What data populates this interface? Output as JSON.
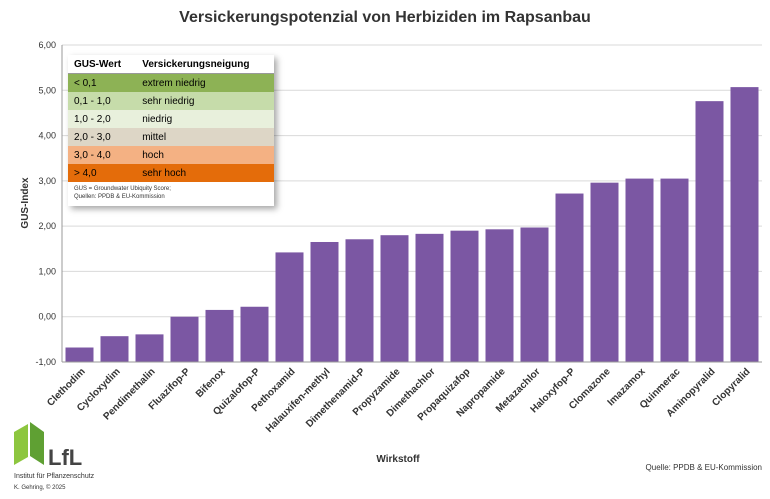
{
  "chart_data": {
    "type": "bar",
    "title": "Versickerungspotenzial von Herbiziden im Rapsanbau",
    "x_label": "Wirkstoff",
    "y_label": "GUS-Index",
    "source": "Quelle: PPDB & EU-Kommission",
    "color": "#7b57a3",
    "grid": true,
    "categories": [
      "Clethodim",
      "Cycloxydim",
      "Pendimethalin",
      "Fluazifop-P",
      "Bifenox",
      "Quizalofop-P",
      "Pethoxamid",
      "Halauxifen-methyl",
      "Dimethenamid-P",
      "Propyzamide",
      "Dimethachlor",
      "Propaquizafop",
      "Napropamide",
      "Metazachlor",
      "Haloxyfop-P",
      "Clomazone",
      "Imazamox",
      "Quinmerac",
      "Aminopyralid",
      "Clopyralid"
    ],
    "values": [
      -0.68,
      -0.43,
      -0.39,
      0.0,
      0.15,
      0.22,
      1.42,
      1.65,
      1.71,
      1.8,
      1.83,
      1.9,
      1.93,
      1.97,
      2.72,
      2.96,
      3.05,
      3.05,
      4.76,
      5.07
    ],
    "ylim": [
      -1,
      6
    ],
    "yticks": [
      {
        "value": -1,
        "label": "-1,00"
      },
      {
        "value": 0,
        "label": "0,00"
      },
      {
        "value": 1,
        "label": "1,00"
      },
      {
        "value": 2,
        "label": "2,00"
      },
      {
        "value": 3,
        "label": "3,00"
      },
      {
        "value": 4,
        "label": "4,00"
      },
      {
        "value": 5,
        "label": "5,00"
      },
      {
        "value": 6,
        "label": "6,00"
      }
    ],
    "gus_table": {
      "headers": [
        "GUS-Wert",
        "Versickerungsneigung"
      ],
      "rows": [
        [
          "< 0,1",
          "extrem niedrig"
        ],
        [
          "0,1 - 1,0",
          "sehr niedrig"
        ],
        [
          "1,0 - 2,0",
          "niedrig"
        ],
        [
          "2,0 - 3,0",
          "mittel"
        ],
        [
          "3,0 - 4,0",
          "hoch"
        ],
        [
          "> 4,0",
          "sehr hoch"
        ]
      ],
      "colors": [
        "#8db255",
        "#c6dcaa",
        "#e8f0dc",
        "#ddd6c6",
        "#f4b183",
        "#e46c0a"
      ],
      "notes": [
        "GUS = Groundwater Ubiquity Score;",
        "Quellen: PPDB & EU-Kommission"
      ]
    }
  },
  "logo": {
    "name": "LfL",
    "institute": "Institut für Pflanzenschutz",
    "author": "K. Gehring, © 2025"
  }
}
